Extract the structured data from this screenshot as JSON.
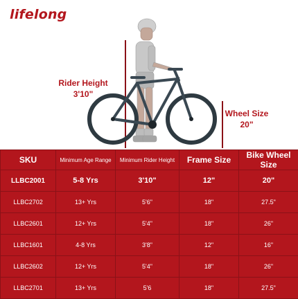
{
  "brand": {
    "logo_text": "lifelong"
  },
  "labels": {
    "rider_height": {
      "title": "Rider Height",
      "value": "3'10\""
    },
    "wheel_size": {
      "title": "Wheel Size",
      "value": "20\""
    }
  },
  "table": {
    "headers": [
      "SKU",
      "Minimum Age Range",
      "Minimum Rider Height",
      "Frame Size",
      "Bike Wheel Size"
    ],
    "rows": [
      [
        "LLBC2001",
        "5-8 Yrs",
        "3'10\"",
        "12\"",
        "20\""
      ],
      [
        "LLBC2702",
        "13+ Yrs",
        "5'6\"",
        "18\"",
        "27.5\""
      ],
      [
        "LLBC2601",
        "12+ Yrs",
        "5'4\"",
        "18\"",
        "26\""
      ],
      [
        "LLBC1601",
        "4-8 Yrs",
        "3'8\"",
        "12\"",
        "16\""
      ],
      [
        "LLBC2602",
        "12+ Yrs",
        "5'4\"",
        "18\"",
        "26\""
      ],
      [
        "LLBC2701",
        "13+ Yrs",
        "5'6",
        "18\"",
        "27.5\""
      ]
    ]
  },
  "colors": {
    "brand_red": "#b3161d",
    "dark_red": "#8b1117"
  }
}
